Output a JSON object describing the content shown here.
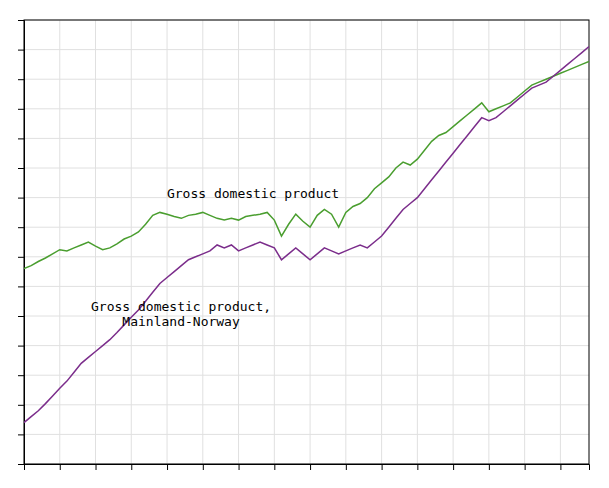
{
  "chart_data": {
    "type": "line",
    "x": [
      0,
      1,
      2,
      3,
      4,
      5,
      6,
      7,
      8,
      9,
      10,
      11,
      12,
      13,
      14,
      15,
      16,
      17,
      18,
      19,
      20,
      21,
      22,
      23,
      24,
      25,
      26,
      27,
      28,
      29,
      30,
      31,
      32,
      33,
      34,
      35,
      36,
      37,
      38,
      39,
      40,
      41,
      42,
      43,
      44,
      45,
      46,
      47,
      48,
      49,
      50,
      51,
      52,
      53,
      54,
      55,
      56,
      57,
      58,
      59,
      60,
      61,
      62,
      63,
      64,
      65,
      66,
      67,
      68,
      69,
      70,
      71,
      72,
      73,
      74,
      75,
      76,
      77,
      78,
      79
    ],
    "series": [
      {
        "color": "#4a9e2f",
        "values": [
          88.0,
          88.5,
          89.2,
          89.8,
          90.5,
          91.2,
          91.0,
          91.5,
          92.0,
          92.5,
          91.8,
          91.2,
          91.5,
          92.2,
          93.0,
          93.5,
          94.2,
          95.5,
          97.0,
          97.5,
          97.2,
          96.8,
          96.5,
          97.0,
          97.2,
          97.5,
          97.0,
          96.5,
          96.2,
          96.5,
          96.2,
          96.8,
          97.0,
          97.2,
          97.5,
          96.2,
          93.5,
          95.5,
          97.2,
          96.0,
          95.0,
          97.0,
          98.0,
          97.2,
          95.0,
          97.5,
          98.5,
          99.0,
          100.0,
          101.5,
          102.5,
          103.5,
          105.0,
          106.0,
          105.5,
          106.5,
          108.0,
          109.5,
          110.5,
          111.0,
          112.0,
          113.0,
          114.0,
          115.0,
          116.0,
          114.5,
          115.0,
          115.5,
          116.0,
          117.0,
          118.0,
          119.0,
          119.5,
          120.0,
          120.5,
          121.0,
          121.5,
          122.0,
          122.5,
          123.0
        ]
      },
      {
        "color": "#7b2d8b",
        "values": [
          62.0,
          63.0,
          64.0,
          65.2,
          66.5,
          67.8,
          69.0,
          70.5,
          72.0,
          73.0,
          74.0,
          75.0,
          76.0,
          77.2,
          78.5,
          79.8,
          81.0,
          82.5,
          84.0,
          85.5,
          86.5,
          87.5,
          88.5,
          89.5,
          90.0,
          90.5,
          91.0,
          92.0,
          91.5,
          92.0,
          91.0,
          91.5,
          92.0,
          92.5,
          92.0,
          91.5,
          89.5,
          90.5,
          91.5,
          90.5,
          89.5,
          90.5,
          91.5,
          91.0,
          90.5,
          91.0,
          91.5,
          92.0,
          91.5,
          92.5,
          93.5,
          95.0,
          96.5,
          98.0,
          99.0,
          100.0,
          101.5,
          103.0,
          104.5,
          106.0,
          107.5,
          109.0,
          110.5,
          112.0,
          113.5,
          113.0,
          113.5,
          114.5,
          115.5,
          116.5,
          117.5,
          118.5,
          119.0,
          119.5,
          120.5,
          121.5,
          122.5,
          123.5,
          124.5,
          125.5
        ]
      }
    ],
    "annotations": [
      "Gross domestic product",
      "Gross domestic product,\nMainland-Norway"
    ],
    "xlim": [
      0,
      79
    ],
    "ylim": [
      55,
      130
    ],
    "xticks": [
      0,
      5,
      10,
      15,
      20,
      25,
      30,
      35,
      40,
      45,
      50,
      55,
      60,
      65,
      70,
      75
    ],
    "yticks": [
      55,
      60,
      65,
      70,
      75,
      80,
      85,
      90,
      95,
      100,
      105,
      110,
      115,
      120,
      125,
      130
    ],
    "grid": true,
    "tick_labels": false
  }
}
